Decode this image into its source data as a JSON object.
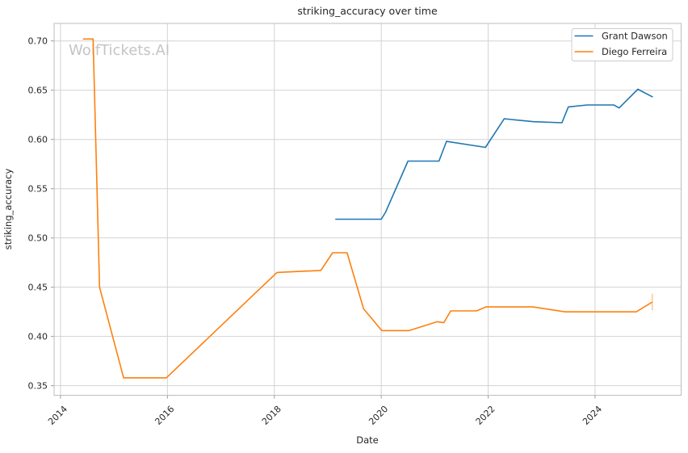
{
  "watermark": {
    "text": "WolfTickets.AI"
  },
  "chart_data": {
    "type": "line",
    "title": "striking_accuracy over time",
    "xlabel": "Date",
    "ylabel": "striking_accuracy",
    "xlim": [
      2013.88,
      2025.61
    ],
    "ylim": [
      0.3403,
      0.7178
    ],
    "x_ticks": [
      2014,
      2016,
      2018,
      2020,
      2022,
      2024
    ],
    "x_tick_labels": [
      "2014",
      "2016",
      "2018",
      "2020",
      "2022",
      "2024"
    ],
    "y_ticks": [
      0.35,
      0.4,
      0.45,
      0.5,
      0.55,
      0.6,
      0.65,
      0.7
    ],
    "y_tick_labels": [
      "0.35",
      "0.40",
      "0.45",
      "0.50",
      "0.55",
      "0.60",
      "0.65",
      "0.70"
    ],
    "grid": true,
    "legend_position": "upper right",
    "series": [
      {
        "name": "Grant Dawson",
        "color": "#1f77b4",
        "x": [
          2019.14,
          2020.0,
          2020.08,
          2020.5,
          2021.08,
          2021.22,
          2021.95,
          2022.3,
          2022.85,
          2023.38,
          2023.5,
          2023.85,
          2024.35,
          2024.45,
          2024.8,
          2025.08
        ],
        "y": [
          0.519,
          0.519,
          0.526,
          0.578,
          0.578,
          0.598,
          0.592,
          0.621,
          0.618,
          0.617,
          0.633,
          0.635,
          0.635,
          0.632,
          0.651,
          0.643
        ]
      },
      {
        "name": "Diego Ferreira",
        "color": "#ff7f0e",
        "x": [
          2014.42,
          2014.61,
          2014.73,
          2015.18,
          2015.98,
          2018.05,
          2018.87,
          2019.09,
          2019.36,
          2019.67,
          2020.01,
          2020.52,
          2021.05,
          2021.17,
          2021.3,
          2021.78,
          2021.96,
          2022.84,
          2023.44,
          2024.77,
          2025.07
        ],
        "y": [
          0.702,
          0.702,
          0.45,
          0.358,
          0.358,
          0.465,
          0.467,
          0.485,
          0.485,
          0.428,
          0.406,
          0.406,
          0.415,
          0.414,
          0.426,
          0.426,
          0.43,
          0.43,
          0.425,
          0.425,
          0.435
        ],
        "end_tick": {
          "x": 2025.07,
          "y_from": 0.4265,
          "y_to": 0.4435
        }
      }
    ]
  },
  "style": {
    "grid_color": "#d3d3d3",
    "spine_color": "#bdbdbd",
    "tick_color": "#999999",
    "text_color": "#262626",
    "watermark_color": "#c5c5c5",
    "legend_border": "#cccccc"
  }
}
